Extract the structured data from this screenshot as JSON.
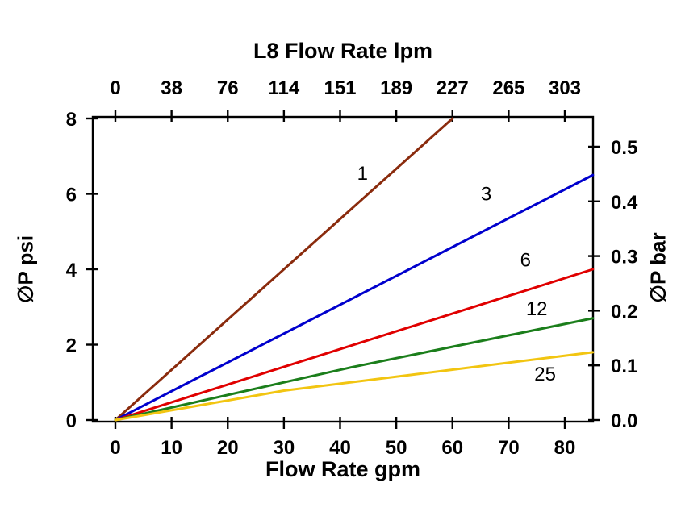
{
  "chart_data": {
    "type": "line",
    "top_axis_title": "L8 Flow Rate lpm",
    "xlabel": "Flow Rate gpm",
    "ylabel_left": "∅P psi",
    "ylabel_right": "∅P bar",
    "xlim": [
      0,
      85
    ],
    "ylim": [
      0,
      8
    ],
    "grid": false,
    "legend": "inline-labels",
    "x_bottom_ticks": [
      0,
      10,
      20,
      30,
      40,
      50,
      60,
      70,
      80
    ],
    "x_top_tick_labels": [
      "0",
      "38",
      "76",
      "114",
      "151",
      "189",
      "227",
      "265",
      "303"
    ],
    "y_left_ticks": [
      0,
      2,
      4,
      6,
      8
    ],
    "y_right_ticks": [
      "0.0",
      "0.1",
      "0.2",
      "0.3",
      "0.4",
      "0.5"
    ],
    "y_right_psi_per_bar": 14.504,
    "axis_color": "#000000",
    "series": [
      {
        "name": "1",
        "color": "#8a2b0d",
        "points": [
          [
            0,
            0
          ],
          [
            60,
            8
          ]
        ],
        "label_at": [
          44,
          6.55
        ]
      },
      {
        "name": "3",
        "color": "#0000cd",
        "points": [
          [
            0,
            0
          ],
          [
            85,
            6.5
          ]
        ],
        "label_at": [
          66,
          6.0
        ]
      },
      {
        "name": "6",
        "color": "#e00000",
        "points": [
          [
            0,
            0
          ],
          [
            85,
            4.0
          ]
        ],
        "label_at": [
          73,
          4.25
        ]
      },
      {
        "name": "12",
        "color": "#1b7e1b",
        "points": [
          [
            0,
            0
          ],
          [
            42,
            1.4
          ],
          [
            85,
            2.7
          ]
        ],
        "label_at": [
          75,
          2.95
        ]
      },
      {
        "name": "25",
        "color": "#f2c511",
        "points": [
          [
            0,
            0
          ],
          [
            30,
            0.78
          ],
          [
            85,
            1.8
          ]
        ],
        "label_at": [
          76.5,
          1.22
        ]
      }
    ]
  }
}
